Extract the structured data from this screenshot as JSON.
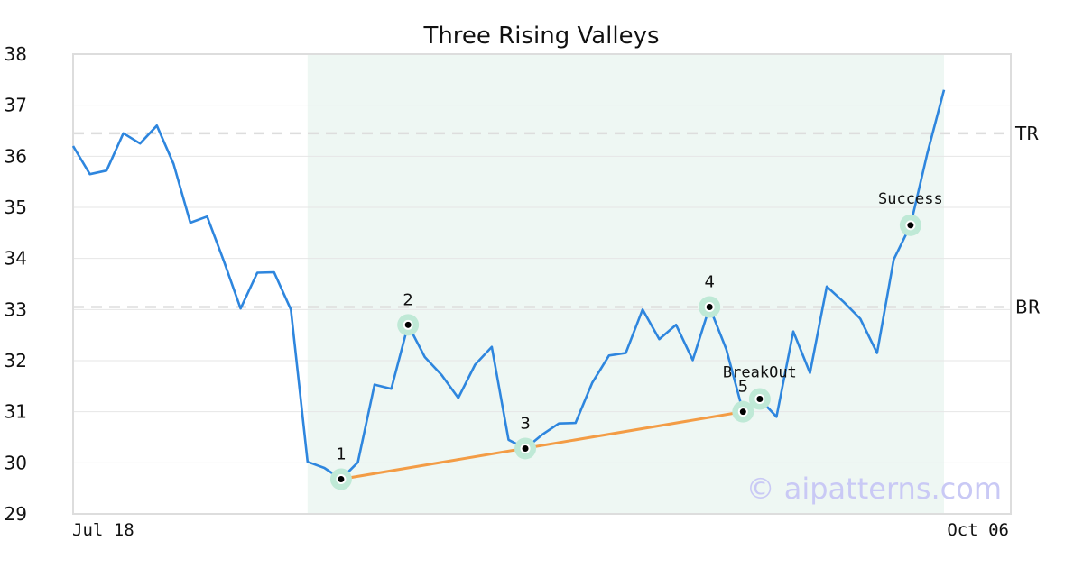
{
  "chart_data": {
    "type": "line",
    "title": "Three Rising Valleys",
    "xlabel": "",
    "ylabel": "",
    "ylim": [
      29,
      38
    ],
    "yticks": [
      "29",
      "30",
      "31",
      "32",
      "33",
      "34",
      "35",
      "36",
      "37",
      "38"
    ],
    "x_start_label": "Jul 18",
    "x_end_label": "Oct 06",
    "grid": true,
    "pattern_window": {
      "start_index": 14,
      "end_index": 52,
      "color": "#eef7f3"
    },
    "series": [
      {
        "color": "#2e86de",
        "values": [
          36.2,
          35.65,
          35.72,
          36.45,
          36.25,
          36.6,
          35.85,
          34.7,
          34.82,
          33.95,
          33.02,
          33.72,
          33.73,
          33.0,
          30.02,
          29.9,
          29.68,
          30.01,
          31.53,
          31.45,
          32.7,
          32.07,
          31.72,
          31.27,
          31.92,
          32.27,
          30.45,
          30.28,
          30.55,
          30.77,
          30.78,
          31.57,
          32.1,
          32.15,
          33.0,
          32.42,
          32.7,
          32.01,
          33.05,
          32.22,
          31.0,
          31.25,
          30.9,
          32.57,
          31.76,
          33.45,
          33.15,
          32.82,
          32.15,
          33.98,
          34.65,
          36.05,
          37.3
        ]
      }
    ],
    "reference_lines": [
      {
        "label": "TR",
        "value": 36.45,
        "color": "#dddddd"
      },
      {
        "label": "BR",
        "value": 33.05,
        "color": "#dddddd"
      }
    ],
    "trendline": {
      "from_index": 16,
      "to_index": 40,
      "color": "#f39c45"
    },
    "points": [
      {
        "label": "1",
        "index": 16,
        "value": 29.68
      },
      {
        "label": "2",
        "index": 20,
        "value": 32.7
      },
      {
        "label": "3",
        "index": 27,
        "value": 30.28
      },
      {
        "label": "4",
        "index": 38,
        "value": 33.05
      },
      {
        "label": "5",
        "index": 40,
        "value": 31.0
      }
    ],
    "annotations": [
      {
        "label": "BreakOut",
        "index": 41,
        "value": 31.25
      },
      {
        "label": "Success",
        "index": 50,
        "value": 34.65
      }
    ],
    "marker_halo_color": "#bfe9d6"
  },
  "watermark": "© aipatterns.com"
}
